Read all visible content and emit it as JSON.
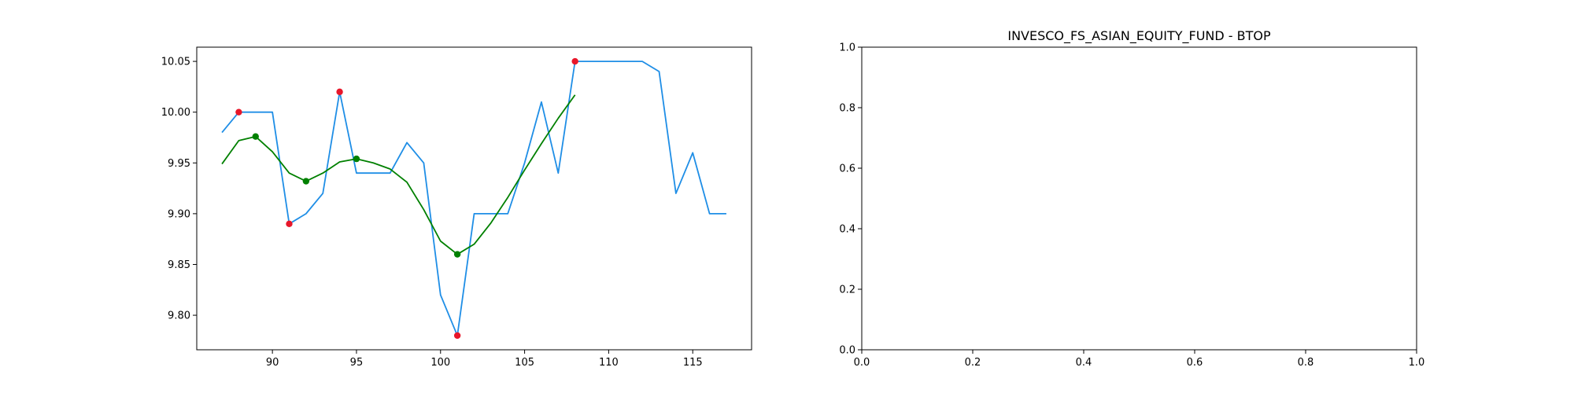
{
  "chart_data": [
    {
      "type": "line",
      "title": "",
      "xlabel": "",
      "ylabel": "",
      "xlim": [
        85.5,
        118.5
      ],
      "ylim": [
        9.766,
        10.064
      ],
      "xticks": [
        90,
        95,
        100,
        105,
        110,
        115
      ],
      "yticks": [
        9.8,
        9.85,
        9.9,
        9.95,
        10.0,
        10.05
      ],
      "xtick_labels": [
        "90",
        "95",
        "100",
        "105",
        "110",
        "115"
      ],
      "ytick_labels": [
        "9.80",
        "9.85",
        "9.90",
        "9.95",
        "10.00",
        "10.05"
      ],
      "grid": false,
      "series": [
        {
          "kind": "line",
          "color": "#1f8ee6",
          "x": [
            87,
            88,
            89,
            90,
            91,
            92,
            93,
            94,
            95,
            96,
            97,
            98,
            99,
            100,
            101,
            102,
            103,
            104,
            105,
            106,
            107,
            108,
            109,
            110,
            111,
            112,
            113,
            114,
            115,
            116,
            117
          ],
          "y": [
            9.98,
            10.0,
            10.0,
            10.0,
            9.89,
            9.9,
            9.92,
            10.02,
            9.94,
            9.94,
            9.94,
            9.97,
            9.95,
            9.82,
            9.78,
            9.9,
            9.9,
            9.9,
            9.95,
            10.01,
            9.94,
            10.05,
            10.05,
            10.05,
            10.05,
            10.05,
            10.04,
            9.92,
            9.96,
            9.9,
            9.9
          ]
        },
        {
          "kind": "line",
          "color": "#008000",
          "x": [
            87,
            88,
            89,
            90,
            91,
            92,
            93,
            94,
            95,
            96,
            97,
            98,
            99,
            100,
            101,
            102,
            103,
            104,
            105,
            106,
            107,
            108
          ],
          "y": [
            9.949,
            9.972,
            9.976,
            9.961,
            9.94,
            9.932,
            9.94,
            9.951,
            9.954,
            9.95,
            9.944,
            9.931,
            9.904,
            9.873,
            9.86,
            9.87,
            9.891,
            9.916,
            9.943,
            9.969,
            9.994,
            10.017
          ]
        },
        {
          "kind": "scatter",
          "color": "#e8172a",
          "x": [
            88,
            91,
            94,
            101,
            108
          ],
          "y": [
            10.0,
            9.89,
            10.02,
            9.78,
            10.05
          ]
        },
        {
          "kind": "scatter",
          "color": "#008000",
          "x": [
            89,
            92,
            95,
            101
          ],
          "y": [
            9.976,
            9.932,
            9.954,
            9.86
          ]
        }
      ]
    },
    {
      "type": "line",
      "title": "INVESCO_FS_ASIAN_EQUITY_FUND - BTOP",
      "xlabel": "",
      "ylabel": "",
      "xlim": [
        0,
        1
      ],
      "ylim": [
        0,
        1
      ],
      "xticks": [
        0.0,
        0.2,
        0.4,
        0.6,
        0.8,
        1.0
      ],
      "yticks": [
        0.0,
        0.2,
        0.4,
        0.6,
        0.8,
        1.0
      ],
      "xtick_labels": [
        "0.0",
        "0.2",
        "0.4",
        "0.6",
        "0.8",
        "1.0"
      ],
      "ytick_labels": [
        "0.0",
        "0.2",
        "0.4",
        "0.6",
        "0.8",
        "1.0"
      ],
      "grid": false,
      "series": []
    }
  ]
}
